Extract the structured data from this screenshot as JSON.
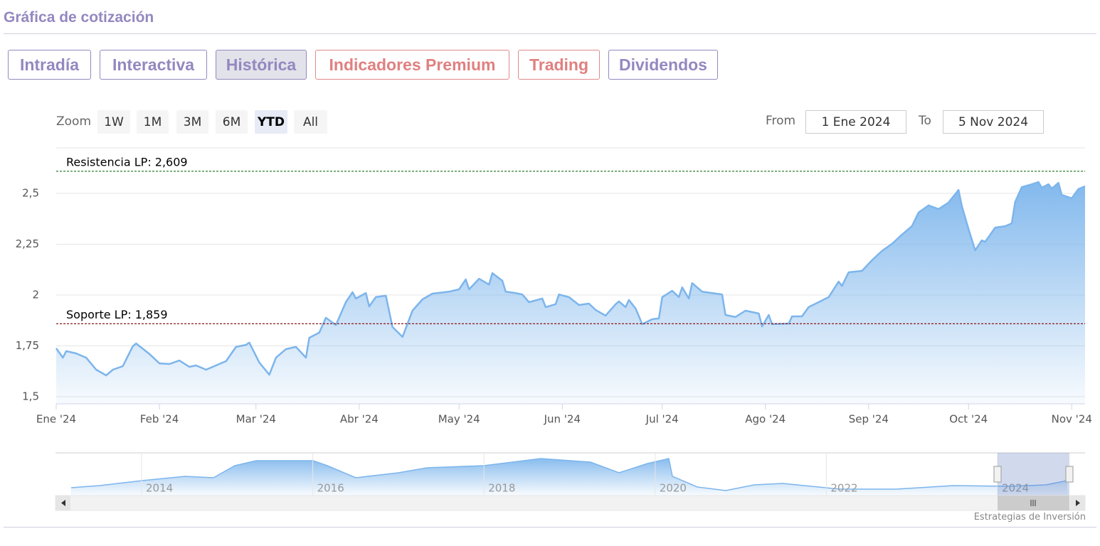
{
  "header": {
    "title": "Gráfica de cotización"
  },
  "tabs": [
    "Intradía",
    "Interactiva",
    "Histórica",
    "Indicadores Premium",
    "Trading",
    "Dividendos"
  ],
  "zoom": {
    "label": "Zoom",
    "buttons": [
      "1W",
      "1M",
      "3M",
      "6M",
      "YTD",
      "All"
    ]
  },
  "range": {
    "from_label": "From",
    "from": "1 Ene 2024",
    "to_label": "To",
    "to": "5 Nov 2024"
  },
  "chart_data": {
    "type": "area",
    "color": "#7cb5ec",
    "x": [
      0,
      2,
      3,
      6,
      9,
      12,
      15,
      17,
      20,
      23,
      24,
      28,
      31,
      34,
      37,
      40,
      42,
      45,
      48,
      51,
      54,
      57,
      58,
      61,
      64,
      66,
      69,
      72,
      75,
      76,
      79,
      81,
      84,
      87,
      89,
      90,
      93,
      94,
      96,
      99,
      101,
      104,
      107,
      110,
      113,
      118,
      121,
      123,
      124,
      127,
      130,
      131,
      134,
      135,
      138,
      140,
      142,
      146,
      147,
      150,
      151,
      154,
      157,
      160,
      162,
      165,
      168,
      169,
      171,
      172,
      174,
      176,
      179,
      181,
      182,
      185,
      187,
      188,
      190,
      191,
      194,
      197,
      200,
      201,
      204,
      207,
      210,
      211,
      212,
      214,
      215,
      220,
      221,
      224,
      226,
      229,
      232,
      235,
      236,
      238,
      242,
      245,
      248,
      251,
      254,
      257,
      259,
      262,
      265,
      268,
      271,
      272,
      274,
      276,
      278,
      279,
      282,
      285,
      287,
      288,
      290,
      293,
      295,
      296,
      298,
      299,
      301,
      302,
      305,
      307,
      309
    ],
    "values": [
      1.738,
      1.692,
      1.724,
      1.713,
      1.692,
      1.633,
      1.605,
      1.633,
      1.65,
      1.748,
      1.762,
      1.71,
      1.664,
      1.661,
      1.678,
      1.647,
      1.654,
      1.633,
      1.654,
      1.675,
      1.745,
      1.755,
      1.766,
      1.668,
      1.608,
      1.692,
      1.734,
      1.745,
      1.692,
      1.79,
      1.815,
      1.888,
      1.853,
      1.965,
      2.014,
      1.983,
      2.01,
      1.944,
      1.99,
      1.997,
      1.843,
      1.794,
      1.923,
      1.979,
      2.007,
      2.017,
      2.028,
      2.077,
      2.028,
      2.08,
      2.052,
      2.108,
      2.07,
      2.017,
      2.01,
      2.003,
      1.965,
      1.983,
      1.941,
      1.955,
      2.003,
      1.99,
      1.951,
      1.958,
      1.927,
      1.899,
      1.955,
      1.969,
      1.941,
      1.976,
      1.934,
      1.857,
      1.881,
      1.885,
      1.99,
      2.021,
      1.99,
      2.038,
      1.983,
      2.059,
      2.017,
      2.01,
      2.003,
      1.902,
      1.892,
      1.923,
      1.913,
      1.909,
      1.846,
      1.902,
      1.857,
      1.86,
      1.895,
      1.895,
      1.941,
      1.965,
      1.99,
      2.066,
      2.045,
      2.112,
      2.119,
      2.171,
      2.217,
      2.252,
      2.297,
      2.339,
      2.406,
      2.441,
      2.423,
      2.455,
      2.517,
      2.437,
      2.325,
      2.22,
      2.269,
      2.262,
      2.332,
      2.339,
      2.353,
      2.458,
      2.531,
      2.545,
      2.556,
      2.528,
      2.545,
      2.524,
      2.552,
      2.493,
      2.476,
      2.521,
      2.535
    ],
    "xlim": [
      0,
      309
    ],
    "xticks": [
      {
        "value": 0,
        "label": "Ene '24"
      },
      {
        "value": 31,
        "label": "Feb '24"
      },
      {
        "value": 60,
        "label": "Mar '24"
      },
      {
        "value": 91,
        "label": "Abr '24"
      },
      {
        "value": 121,
        "label": "May '24"
      },
      {
        "value": 152,
        "label": "Jun '24"
      },
      {
        "value": 182,
        "label": "Jul '24"
      },
      {
        "value": 213,
        "label": "Ago '24"
      },
      {
        "value": 244,
        "label": "Sep '24"
      },
      {
        "value": 274,
        "label": "Oct '24"
      },
      {
        "value": 305,
        "label": "Nov '24"
      }
    ],
    "ylim": [
      1.465,
      2.724
    ],
    "yticks": [
      {
        "value": 1.5,
        "label": "1,5"
      },
      {
        "value": 1.75,
        "label": "1,75"
      },
      2,
      {
        "value": 2.25,
        "label": "2,25"
      },
      {
        "value": 2.5,
        "label": "2,5"
      }
    ],
    "grid": true,
    "plot_lines": [
      {
        "value": 2.609,
        "label": "Resistencia LP: 2,609",
        "color": "#2e7d32"
      },
      {
        "value": 1.859,
        "label": "Soporte LP: 1,859",
        "color": "#8b1a1a"
      }
    ]
  },
  "navigator": {
    "years": [
      "2014",
      "2016",
      "2018",
      "2020",
      "2022",
      "2024"
    ]
  },
  "credit": "Estrategias de Inversión"
}
